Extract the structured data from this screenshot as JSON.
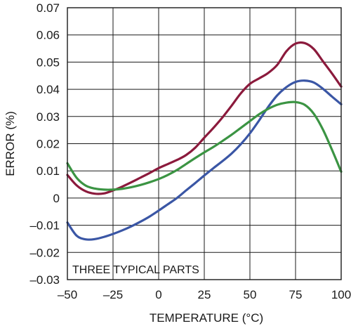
{
  "chart_data": {
    "type": "line",
    "title": "",
    "xlabel": "TEMPERATURE (°C)",
    "ylabel": "ERROR (%)",
    "annotation": "THREE TYPICAL PARTS",
    "xlim": [
      -50,
      100
    ],
    "ylim": [
      -0.03,
      0.07
    ],
    "grid": true,
    "xticks": [
      -50,
      -25,
      0,
      25,
      50,
      75,
      100
    ],
    "yticks": [
      -0.03,
      -0.02,
      -0.01,
      0,
      0.01,
      0.02,
      0.03,
      0.04,
      0.05,
      0.06,
      0.07
    ],
    "xtick_labels": [
      "–50",
      "–25",
      "0",
      "25",
      "50",
      "75",
      "100"
    ],
    "ytick_labels": [
      "–0.03",
      "–0.02",
      "–0.01",
      "0",
      "0.01",
      "0.02",
      "0.03",
      "0.04",
      "0.05",
      "0.06",
      "0.07"
    ],
    "series": [
      {
        "color": "#8b1a3c",
        "x": [
          -50,
          -45,
          -40,
          -35,
          -30,
          -25,
          -20,
          -15,
          -10,
          -5,
          0,
          5,
          10,
          15,
          20,
          25,
          30,
          35,
          40,
          45,
          50,
          55,
          60,
          65,
          70,
          75,
          80,
          85,
          90,
          95,
          100
        ],
        "y": [
          0.0085,
          0.0047,
          0.0025,
          0.0016,
          0.0017,
          0.0028,
          0.0042,
          0.0058,
          0.0075,
          0.0092,
          0.011,
          0.0125,
          0.014,
          0.0158,
          0.0185,
          0.0222,
          0.0258,
          0.0297,
          0.034,
          0.0385,
          0.042,
          0.044,
          0.046,
          0.049,
          0.054,
          0.0568,
          0.057,
          0.0548,
          0.0503,
          0.0458,
          0.041
        ]
      },
      {
        "color": "#3a56a5",
        "x": [
          -50,
          -45,
          -40,
          -35,
          -30,
          -25,
          -20,
          -15,
          -10,
          -5,
          0,
          5,
          10,
          15,
          20,
          25,
          30,
          35,
          40,
          45,
          50,
          55,
          60,
          65,
          70,
          75,
          80,
          85,
          90,
          95,
          100
        ],
        "y": [
          -0.009,
          -0.0138,
          -0.0152,
          -0.0151,
          -0.0143,
          -0.0132,
          -0.0119,
          -0.0104,
          -0.0087,
          -0.0068,
          -0.0046,
          -0.0023,
          0.0,
          0.0028,
          0.0055,
          0.0083,
          0.011,
          0.0136,
          0.0164,
          0.0198,
          0.0238,
          0.0285,
          0.0335,
          0.0378,
          0.0408,
          0.0427,
          0.0432,
          0.0425,
          0.0402,
          0.0373,
          0.0345
        ]
      },
      {
        "color": "#3b9443",
        "x": [
          -50,
          -45,
          -40,
          -35,
          -30,
          -25,
          -20,
          -15,
          -10,
          -5,
          0,
          5,
          10,
          15,
          20,
          25,
          30,
          35,
          40,
          45,
          50,
          55,
          60,
          65,
          70,
          75,
          80,
          85,
          90,
          95,
          100
        ],
        "y": [
          0.0128,
          0.0075,
          0.0046,
          0.0035,
          0.0031,
          0.0031,
          0.0034,
          0.004,
          0.0048,
          0.0058,
          0.007,
          0.0085,
          0.0103,
          0.0125,
          0.0147,
          0.0168,
          0.0188,
          0.021,
          0.0233,
          0.0258,
          0.0283,
          0.0308,
          0.0328,
          0.0343,
          0.0351,
          0.0353,
          0.0343,
          0.031,
          0.0252,
          0.0177,
          0.0097
        ]
      }
    ]
  }
}
